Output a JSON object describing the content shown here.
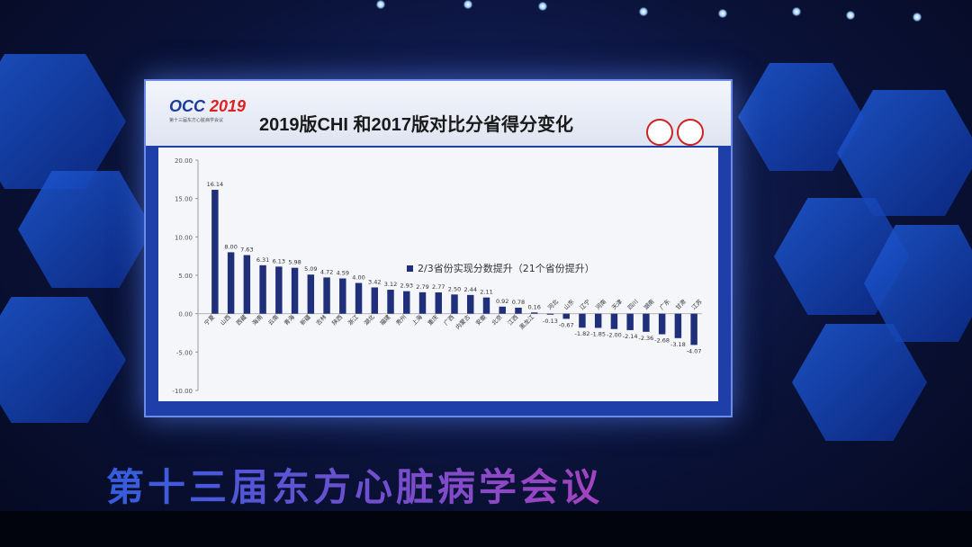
{
  "slide": {
    "logo_main": "OCC",
    "logo_year": "2019",
    "logo_sub": "第十三届东方心脏病学会议",
    "title": "2019版CHI 和2017版对比分省得分变化",
    "legend": "2/3省份实现分数提升（21个省份提升）"
  },
  "banner": {
    "text": "第十三届东方心脏病学会议"
  },
  "colors": {
    "bar": "#1f2f7a",
    "screen_frame": "#1f3fa8",
    "plot_bg": "#f5f6fa"
  },
  "chart_data": {
    "type": "bar",
    "title": "2019版CHI 和2017版对比分省得分变化",
    "categories": [
      "宁夏",
      "山西",
      "西藏",
      "海南",
      "云南",
      "青海",
      "新疆",
      "吉林",
      "陕西",
      "浙江",
      "湖北",
      "福建",
      "贵州",
      "上海",
      "重庆",
      "广西",
      "内蒙古",
      "安徽",
      "北京",
      "江西",
      "黑龙江",
      "河北",
      "山东",
      "辽宁",
      "河南",
      "天津",
      "四川",
      "湖南",
      "广东",
      "甘肃",
      "江苏"
    ],
    "values": [
      16.14,
      8.0,
      7.63,
      6.31,
      6.13,
      5.98,
      5.09,
      4.72,
      4.59,
      4.0,
      3.42,
      3.12,
      2.93,
      2.79,
      2.77,
      2.5,
      2.44,
      2.11,
      0.92,
      0.78,
      0.16,
      -0.13,
      -0.67,
      -1.82,
      -1.85,
      -2.0,
      -2.14,
      -2.36,
      -2.68,
      -3.18,
      -4.07
    ],
    "value_labels": [
      "16.14",
      "8.00",
      "7.63",
      "6.31",
      "6.13",
      "5.98",
      "5.09",
      "4.72",
      "4.59",
      "4.00",
      "3.42",
      "3.12",
      "2.93",
      "2.79",
      "2.77",
      "2.50",
      "2.44",
      "2.11",
      "0.92",
      "0.78",
      "0.16",
      "-0.13",
      "-0.67",
      "-1.82",
      "-1.85",
      "-2.00",
      "-2.14",
      "-2.36",
      "-2.68",
      "-3.18",
      "-4.07"
    ],
    "yticks": [
      "20.00",
      "15.00",
      "10.00",
      "5.00",
      "0.00",
      "-5.00",
      "-10.00"
    ],
    "ylim": [
      -10,
      20
    ],
    "legend": "2/3省份实现分数提升（21个省份提升）",
    "grid": false
  }
}
